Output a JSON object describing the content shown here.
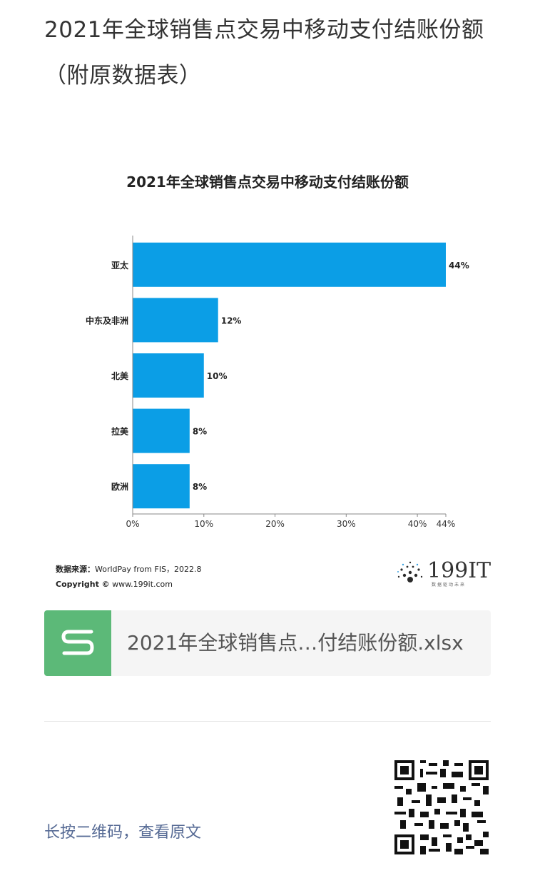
{
  "article": {
    "title": "2021年全球销售点交易中移动支付结账份额（附原数据表）"
  },
  "chart_data": {
    "type": "bar",
    "orientation": "horizontal",
    "title": "2021年全球销售点交易中移动支付结账份额",
    "categories": [
      "亚太",
      "中东及非洲",
      "北美",
      "拉美",
      "欧洲"
    ],
    "values": [
      44,
      12,
      10,
      8,
      8
    ],
    "value_labels": [
      "44%",
      "12%",
      "10%",
      "8%",
      "8%"
    ],
    "x_ticks": [
      "0%",
      "10%",
      "20%",
      "30%",
      "40%",
      "44%"
    ],
    "x_tick_values": [
      0,
      10,
      20,
      30,
      40,
      44
    ],
    "xlim": [
      0,
      44
    ],
    "bar_color": "#0b9ee6",
    "grid": false,
    "legend": "none"
  },
  "source": {
    "label": "数据来源：",
    "text": "WorldPay from FIS，2022.8",
    "copyright_label": "Copyright ©",
    "copyright_url": "www.199it.com"
  },
  "logo": {
    "text": "199IT",
    "subtitle": "数据驱动未来"
  },
  "attachment": {
    "file_name": "2021年全球销售点…付结账份额.xlsx",
    "icon": "spreadsheet-s-icon",
    "icon_color": "#5cb978"
  },
  "footer": {
    "read_original": "长按二维码，查看原文",
    "link_color": "#576b95",
    "qr_icon": "qr-code-icon"
  }
}
